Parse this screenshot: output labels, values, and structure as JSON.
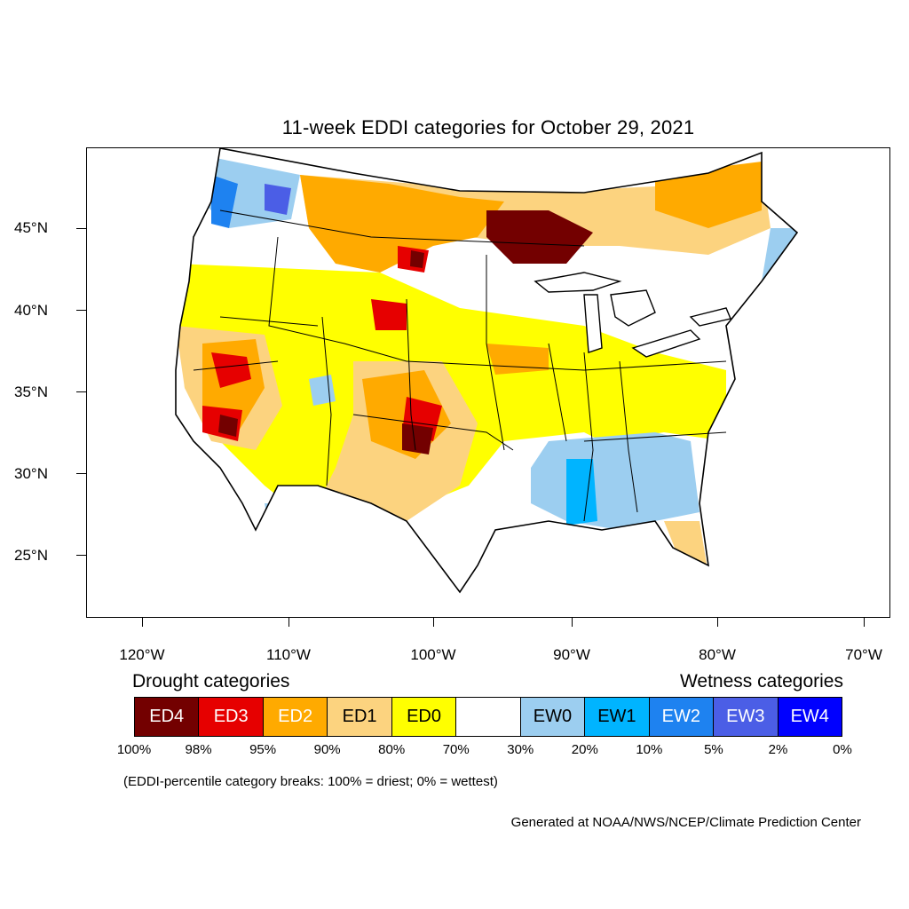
{
  "title": "11-week EDDI categories for October 29, 2021",
  "lat_labels": [
    "45°N",
    "40°N",
    "35°N",
    "30°N",
    "25°N"
  ],
  "lon_labels": [
    "120°W",
    "110°W",
    "100°W",
    "90°W",
    "80°W",
    "70°W"
  ],
  "legend": {
    "drought_heading": "Drought categories",
    "wetness_heading": "Wetness categories",
    "categories": [
      {
        "label": "ED4",
        "color": "#730000",
        "text_color": "#ffffff"
      },
      {
        "label": "ED3",
        "color": "#e60000",
        "text_color": "#ffffff"
      },
      {
        "label": "ED2",
        "color": "#ffaa00",
        "text_color": "#ffffff"
      },
      {
        "label": "ED1",
        "color": "#fcd37f",
        "text_color": "#000000"
      },
      {
        "label": "ED0",
        "color": "#ffff00",
        "text_color": "#000000"
      },
      {
        "label": "",
        "color": "#ffffff",
        "text_color": "#000000"
      },
      {
        "label": "EW0",
        "color": "#9ccef0",
        "text_color": "#000000"
      },
      {
        "label": "EW1",
        "color": "#00b4ff",
        "text_color": "#000000"
      },
      {
        "label": "EW2",
        "color": "#1e82f0",
        "text_color": "#ffffff"
      },
      {
        "label": "EW3",
        "color": "#4b5ee6",
        "text_color": "#ffffff"
      },
      {
        "label": "EW4",
        "color": "#0000ff",
        "text_color": "#ffffff"
      }
    ],
    "breaks": [
      "100%",
      "98%",
      "95%",
      "90%",
      "80%",
      "70%",
      "30%",
      "20%",
      "10%",
      "5%",
      "2%",
      "0%"
    ]
  },
  "note": "(EDDI-percentile category breaks: 100% = driest; 0% = wettest)",
  "credit": "Generated at NOAA/NWS/NCEP/Climate Prediction Center"
}
